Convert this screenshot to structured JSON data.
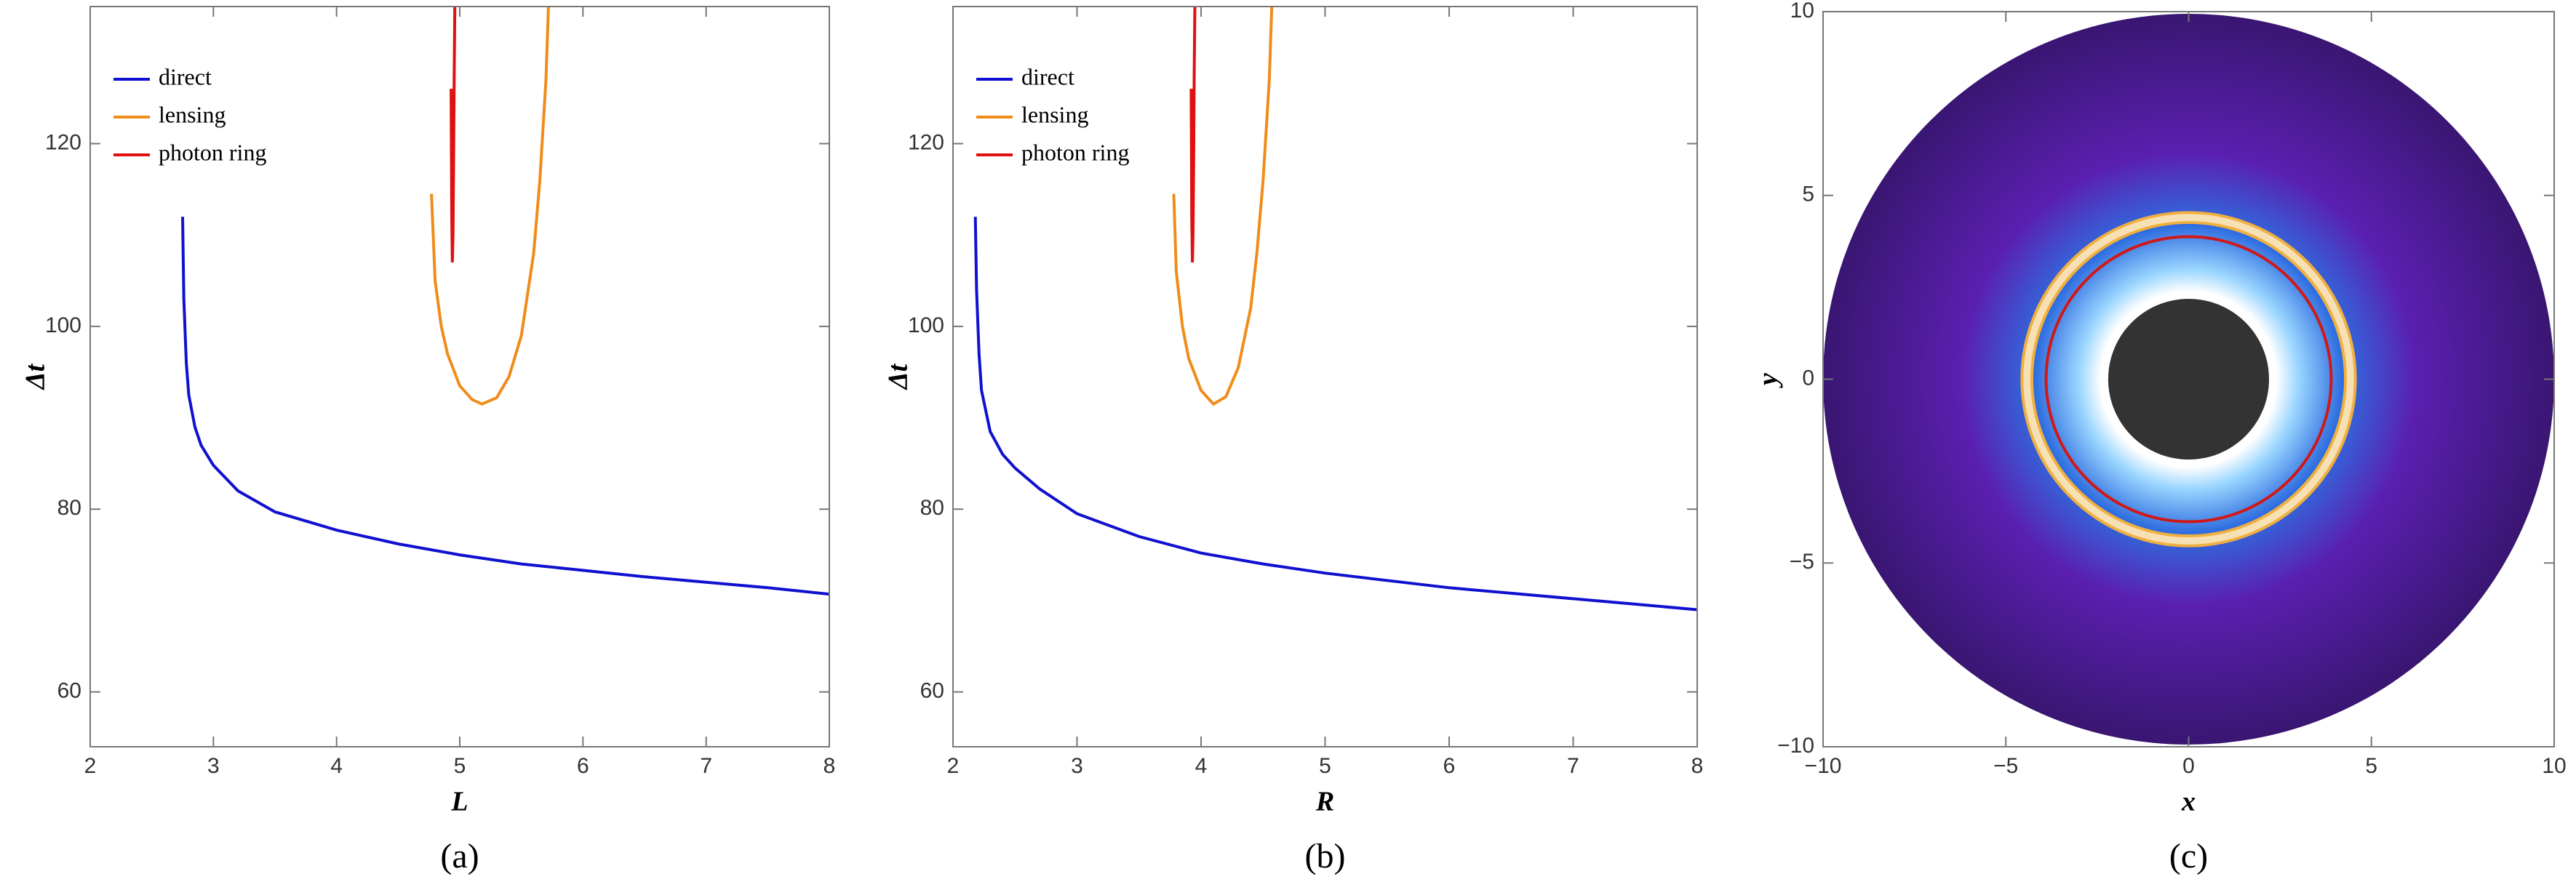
{
  "chart_data": [
    {
      "type": "line",
      "caption": "(a)",
      "xlabel": "L",
      "ylabel": "Δt",
      "xlim": [
        2,
        8
      ],
      "ylim": [
        54,
        135
      ],
      "xticks": [
        2,
        3,
        4,
        5,
        6,
        7,
        8
      ],
      "yticks": [
        60,
        80,
        100,
        120
      ],
      "legend": "top-left",
      "series": [
        {
          "name": "direct",
          "color": "#1010d0",
          "x": [
            2.75,
            2.76,
            2.78,
            2.8,
            2.85,
            2.9,
            3,
            3.2,
            3.5,
            4,
            4.5,
            5,
            5.5,
            6,
            6.5,
            7,
            7.5,
            8
          ],
          "values": [
            112,
            103,
            96,
            92.5,
            89,
            87,
            84.8,
            82,
            79.7,
            77.7,
            76.2,
            75,
            74,
            73.3,
            72.6,
            72,
            71.4,
            70.7
          ]
        },
        {
          "name": "lensing",
          "color": "#f08c1a",
          "x": [
            4.77,
            4.8,
            4.85,
            4.9,
            5,
            5.1,
            5.18,
            5.3,
            5.4,
            5.5,
            5.6,
            5.65,
            5.7,
            5.72
          ],
          "values": [
            114.5,
            105,
            100,
            97,
            93.5,
            92,
            91.5,
            92.2,
            94.5,
            99,
            108,
            116,
            127,
            135
          ]
        },
        {
          "name": "photon ring",
          "color": "#e01010",
          "x": [
            4.93,
            4.935,
            4.94,
            4.945,
            4.95,
            4.955,
            4.96
          ],
          "values": [
            126,
            112,
            107,
            110,
            118,
            128,
            135
          ]
        }
      ]
    },
    {
      "type": "line",
      "caption": "(b)",
      "xlabel": "R",
      "ylabel": "Δt",
      "xlim": [
        2,
        8
      ],
      "ylim": [
        54,
        135
      ],
      "xticks": [
        2,
        3,
        4,
        5,
        6,
        7,
        8
      ],
      "yticks": [
        60,
        80,
        100,
        120
      ],
      "legend": "top-left",
      "series": [
        {
          "name": "direct",
          "color": "#1010d0",
          "x": [
            2.18,
            2.19,
            2.21,
            2.23,
            2.3,
            2.4,
            2.5,
            2.7,
            3,
            3.5,
            4,
            4.5,
            5,
            5.5,
            6,
            6.5,
            7,
            7.5,
            8
          ],
          "values": [
            112,
            104,
            97,
            93,
            88.5,
            86,
            84.5,
            82.2,
            79.5,
            77,
            75.2,
            74,
            73,
            72.2,
            71.4,
            70.8,
            70.2,
            69.6,
            69
          ]
        },
        {
          "name": "lensing",
          "color": "#f08c1a",
          "x": [
            3.78,
            3.8,
            3.85,
            3.9,
            4,
            4.1,
            4.2,
            4.3,
            4.4,
            4.45,
            4.5,
            4.55,
            4.57
          ],
          "values": [
            114.5,
            106,
            100,
            96.5,
            93,
            91.5,
            92.3,
            95.5,
            102,
            108,
            116,
            127,
            135
          ]
        },
        {
          "name": "photon ring",
          "color": "#e01010",
          "x": [
            3.92,
            3.925,
            3.93,
            3.935,
            3.94,
            3.945,
            3.95
          ],
          "values": [
            126,
            112,
            107,
            110,
            118,
            128,
            135
          ]
        }
      ]
    },
    {
      "type": "image",
      "caption": "(c)",
      "xlabel": "x",
      "ylabel": "y",
      "xlim": [
        -10,
        10
      ],
      "ylim": [
        -10,
        10
      ],
      "xticks": [
        {
          "value": -10,
          "label": "−10"
        },
        {
          "value": -5,
          "label": "−5"
        },
        0,
        5,
        10
      ],
      "yticks": [
        {
          "value": -10,
          "label": "−10"
        },
        {
          "value": -5,
          "label": "−5"
        },
        0,
        5,
        10
      ],
      "disk_radius": 10,
      "lensing_ring_radii": [
        4.25,
        4.6
      ],
      "photon_ring_radius": 3.9,
      "shadow_radius": 2.2,
      "colors": {
        "lensing_ring": "#f0b040",
        "lensing_ring_inner": "#f6e0b4",
        "photon_ring": "#d01818",
        "shadow": "#333333"
      }
    }
  ]
}
